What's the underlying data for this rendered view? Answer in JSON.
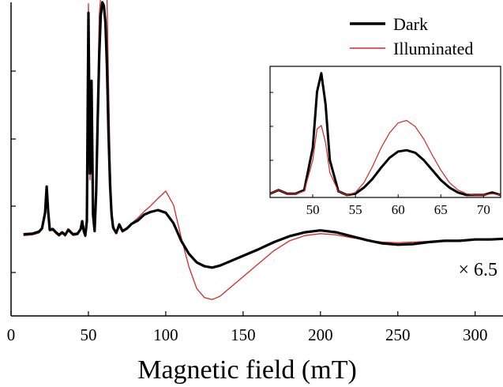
{
  "chart_data": [
    {
      "type": "line",
      "xlabel": "Magnetic field (mT)",
      "ylabel": "",
      "xlim": [
        0,
        318
      ],
      "xticks": [
        0,
        50,
        100,
        150,
        200,
        250,
        300
      ],
      "annotation": "× 6.5",
      "legend": {
        "placement": "top-right",
        "entries": [
          "Dark",
          "Illuminated"
        ]
      },
      "grid": false,
      "series": [
        {
          "name": "Dark",
          "color": "#000000",
          "x": [
            8,
            14,
            18,
            20,
            22,
            23,
            24,
            25,
            27,
            29,
            31,
            33,
            35,
            37,
            40,
            43,
            45,
            46,
            47,
            48,
            49,
            50,
            51,
            52,
            53,
            54,
            55,
            56,
            57,
            58,
            59,
            60,
            61,
            62,
            63,
            64,
            65,
            66,
            68,
            70,
            72,
            75,
            78,
            82,
            86,
            90,
            95,
            100,
            105,
            110,
            115,
            120,
            125,
            130,
            135,
            140,
            150,
            160,
            170,
            180,
            190,
            200,
            210,
            220,
            230,
            240,
            250,
            260,
            270,
            280,
            290,
            300,
            310,
            318
          ],
          "y": [
            0.05,
            0.06,
            0.09,
            0.14,
            0.38,
            0.78,
            0.4,
            0.12,
            0.13,
            0.08,
            0.04,
            0.08,
            0.04,
            0.12,
            0.05,
            0.06,
            0.13,
            0.25,
            0.1,
            0.03,
            0.25,
            3.44,
            0.98,
            2.4,
            0.35,
            0.1,
            0.7,
            1.8,
            2.8,
            3.4,
            3.6,
            3.55,
            3.3,
            2.6,
            1.6,
            0.8,
            0.35,
            0.15,
            0.07,
            0.2,
            0.1,
            0.14,
            0.21,
            0.26,
            0.35,
            0.39,
            0.42,
            0.38,
            0.22,
            -0.05,
            -0.25,
            -0.38,
            -0.44,
            -0.46,
            -0.43,
            -0.38,
            -0.28,
            -0.18,
            -0.07,
            0.02,
            0.08,
            0.11,
            0.08,
            0.02,
            -0.04,
            -0.09,
            -0.11,
            -0.1,
            -0.07,
            -0.05,
            -0.05,
            -0.03,
            -0.03,
            -0.02
          ]
        },
        {
          "name": "Illuminated",
          "color": "#d62728",
          "x": [
            8,
            14,
            18,
            20,
            22,
            23,
            24,
            25,
            27,
            29,
            31,
            33,
            35,
            37,
            40,
            43,
            45,
            46,
            47,
            48,
            49,
            50,
            51,
            52,
            53,
            54,
            55,
            56,
            57,
            58,
            59,
            60,
            61,
            62,
            63,
            64,
            65,
            66,
            68,
            70,
            72,
            75,
            78,
            82,
            86,
            90,
            95,
            100,
            105,
            110,
            115,
            120,
            125,
            130,
            135,
            140,
            150,
            160,
            170,
            180,
            190,
            200,
            210,
            220,
            230,
            240,
            250,
            260,
            270,
            280,
            290,
            300,
            310,
            318
          ],
          "y": [
            0.03,
            0.04,
            0.07,
            0.12,
            0.35,
            0.74,
            0.36,
            0.1,
            0.11,
            0.06,
            0.02,
            0.06,
            0.02,
            0.1,
            0.03,
            0.04,
            0.11,
            0.22,
            0.08,
            0.01,
            0.22,
            3.58,
            0.88,
            2.1,
            0.3,
            0.12,
            0.8,
            2.2,
            3.4,
            3.7,
            3.7,
            3.7,
            3.7,
            3.7,
            2.4,
            1.2,
            0.5,
            0.2,
            0.06,
            0.18,
            0.08,
            0.13,
            0.22,
            0.3,
            0.4,
            0.48,
            0.6,
            0.71,
            0.5,
            0.0,
            -0.45,
            -0.78,
            -0.92,
            -0.95,
            -0.9,
            -0.8,
            -0.6,
            -0.4,
            -0.2,
            -0.05,
            0.03,
            0.06,
            0.04,
            0.0,
            -0.04,
            -0.07,
            -0.08,
            -0.07,
            -0.06,
            -0.05,
            -0.04,
            -0.03,
            -0.02,
            -0.02
          ]
        }
      ]
    },
    {
      "type": "line",
      "xlabel": "",
      "ylabel": "",
      "xlim": [
        45,
        72
      ],
      "xticks": [
        50,
        55,
        60,
        65,
        70
      ],
      "grid": false,
      "series": [
        {
          "name": "Dark",
          "color": "#000000",
          "x": [
            45,
            46,
            47,
            48,
            49,
            50,
            50.5,
            51,
            51.5,
            52,
            53,
            54,
            55,
            56,
            57,
            58,
            59,
            60,
            61,
            62,
            63,
            64,
            65,
            66,
            67,
            68,
            69,
            70,
            71,
            72
          ],
          "y": [
            0.03,
            0.06,
            0.03,
            0.03,
            0.06,
            0.4,
            0.85,
            1.0,
            0.75,
            0.3,
            0.05,
            0.02,
            0.03,
            0.08,
            0.15,
            0.24,
            0.32,
            0.37,
            0.38,
            0.36,
            0.3,
            0.22,
            0.14,
            0.08,
            0.04,
            0.02,
            0.02,
            0.02,
            0.04,
            0.02
          ]
        },
        {
          "name": "Illuminated",
          "color": "#d62728",
          "x": [
            45,
            46,
            47,
            48,
            49,
            50,
            50.5,
            51,
            51.5,
            52,
            53,
            54,
            55,
            56,
            57,
            58,
            59,
            60,
            61,
            62,
            63,
            64,
            65,
            66,
            67,
            68,
            69,
            70,
            71,
            72
          ],
          "y": [
            0.03,
            0.06,
            0.03,
            0.03,
            0.05,
            0.3,
            0.55,
            0.58,
            0.44,
            0.2,
            0.05,
            0.02,
            0.04,
            0.12,
            0.25,
            0.4,
            0.52,
            0.6,
            0.62,
            0.57,
            0.47,
            0.34,
            0.22,
            0.12,
            0.06,
            0.03,
            0.02,
            0.02,
            0.03,
            0.02
          ]
        }
      ]
    }
  ]
}
